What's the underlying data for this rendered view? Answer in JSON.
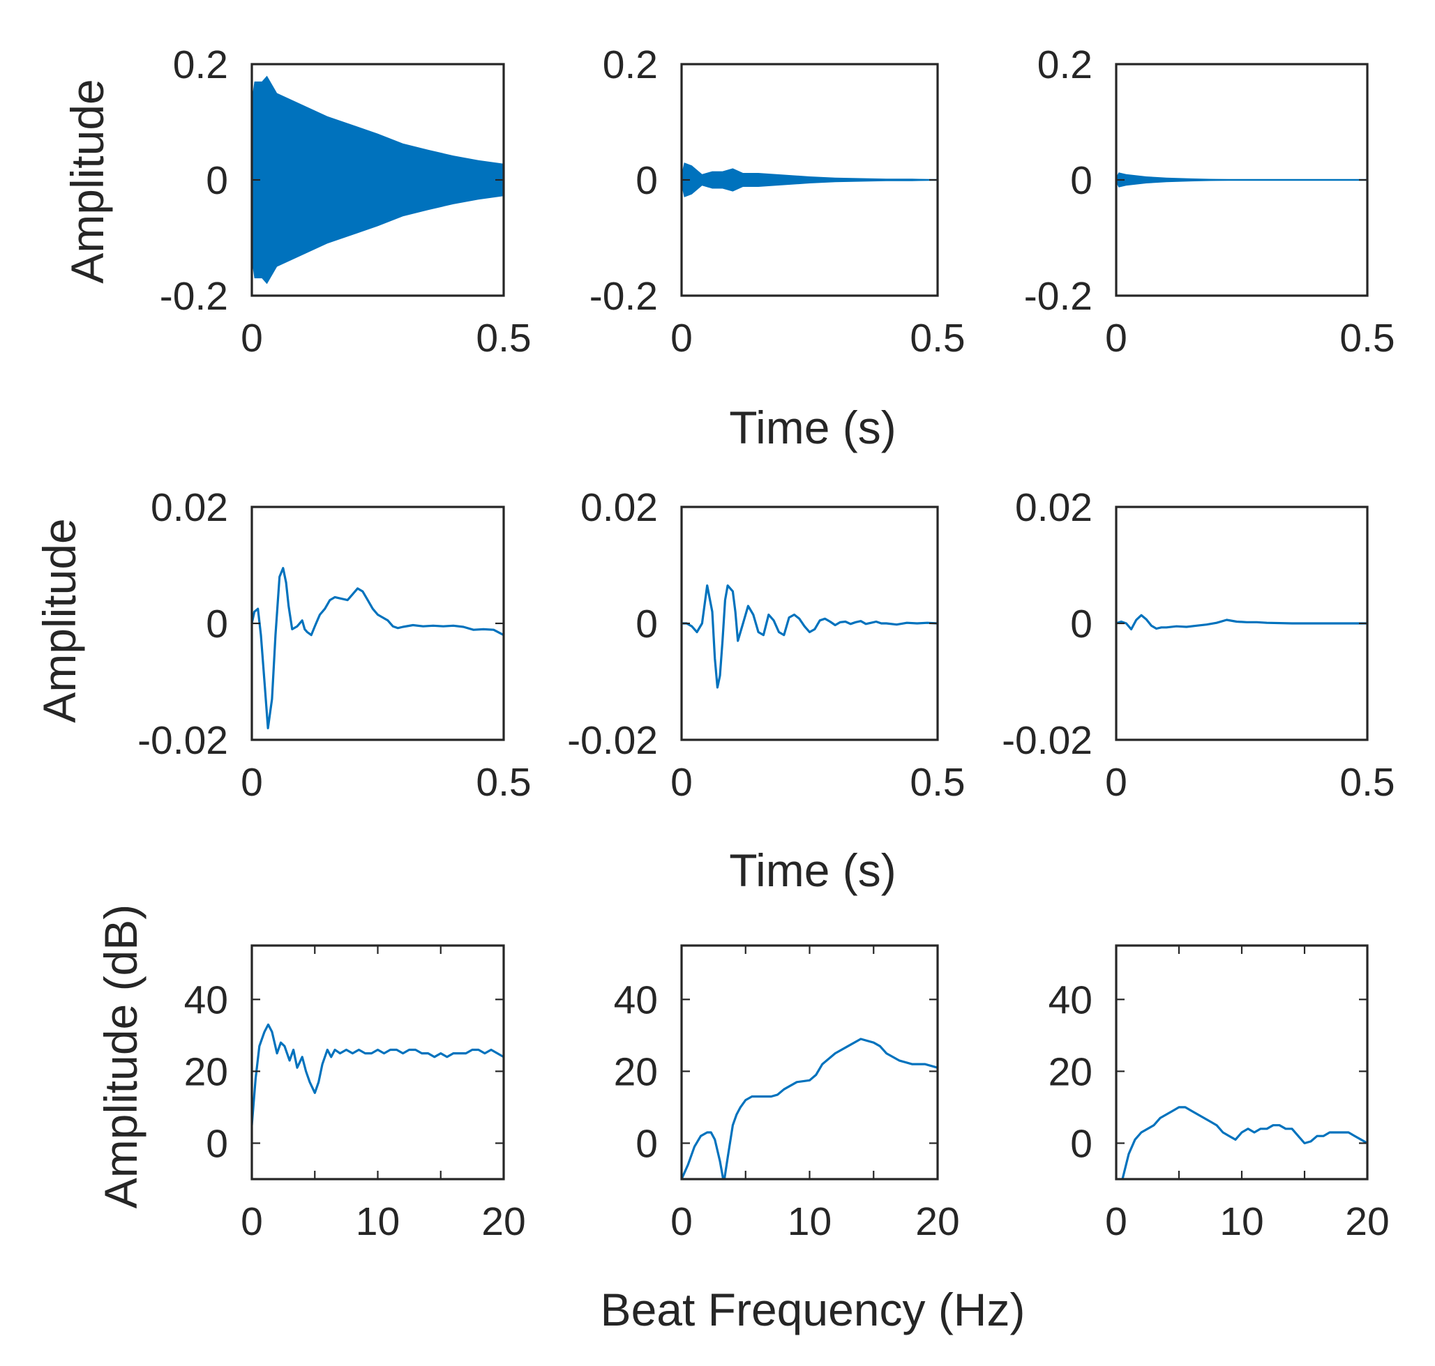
{
  "chart_data": {
    "type": "line",
    "layout": "3x3 grid of subplots",
    "color": "#0072BD",
    "rows": [
      {
        "row": 1,
        "ylabel": "Amplitude",
        "xlabel": "Time (s)",
        "xlim": [
          0,
          0.5
        ],
        "ylim": [
          -0.2,
          0.2
        ],
        "xticks": [
          0,
          0.5
        ],
        "xticklabels": [
          "0",
          "0.5"
        ],
        "yticks": [
          -0.2,
          0,
          0.2
        ],
        "yticklabels": [
          "-0.2",
          "0",
          "0.2"
        ],
        "panels": [
          {
            "kind": "envelope",
            "x": [
              0,
              0.005,
              0.02,
              0.03,
              0.05,
              0.1,
              0.15,
              0.2,
              0.25,
              0.3,
              0.35,
              0.4,
              0.45,
              0.5
            ],
            "upper": [
              0.14,
              0.17,
              0.17,
              0.18,
              0.15,
              0.13,
              0.11,
              0.095,
              0.08,
              0.063,
              0.052,
              0.042,
              0.034,
              0.028
            ],
            "lower": [
              -0.14,
              -0.17,
              -0.17,
              -0.18,
              -0.15,
              -0.13,
              -0.11,
              -0.095,
              -0.08,
              -0.063,
              -0.052,
              -0.042,
              -0.034,
              -0.028
            ]
          },
          {
            "kind": "envelope",
            "x": [
              0,
              0.005,
              0.02,
              0.04,
              0.06,
              0.08,
              0.1,
              0.12,
              0.15,
              0.2,
              0.25,
              0.3,
              0.35,
              0.4,
              0.45,
              0.5
            ],
            "upper": [
              0.01,
              0.03,
              0.025,
              0.01,
              0.015,
              0.015,
              0.02,
              0.012,
              0.012,
              0.009,
              0.006,
              0.004,
              0.003,
              0.002,
              0.002,
              0.001
            ],
            "lower": [
              -0.01,
              -0.03,
              -0.025,
              -0.01,
              -0.015,
              -0.015,
              -0.02,
              -0.012,
              -0.012,
              -0.009,
              -0.006,
              -0.004,
              -0.003,
              -0.002,
              -0.002,
              -0.001
            ]
          },
          {
            "kind": "envelope",
            "x": [
              0,
              0.005,
              0.02,
              0.04,
              0.06,
              0.08,
              0.1,
              0.15,
              0.2,
              0.25,
              0.3,
              0.4,
              0.5
            ],
            "upper": [
              0.005,
              0.013,
              0.01,
              0.008,
              0.006,
              0.005,
              0.004,
              0.0025,
              0.0015,
              0.001,
              0.0005,
              0.0003,
              0.0002
            ],
            "lower": [
              -0.005,
              -0.013,
              -0.01,
              -0.008,
              -0.006,
              -0.005,
              -0.004,
              -0.0025,
              -0.0015,
              -0.001,
              -0.0005,
              -0.0003,
              -0.0002
            ]
          }
        ]
      },
      {
        "row": 2,
        "ylabel": "Amplitude",
        "xlabel": "Time (s)",
        "xlim": [
          0,
          0.5
        ],
        "ylim": [
          -0.02,
          0.02
        ],
        "xticks": [
          0,
          0.5
        ],
        "xticklabels": [
          "0",
          "0.5"
        ],
        "yticks": [
          -0.02,
          0,
          0.02
        ],
        "yticklabels": [
          "-0.02",
          "0",
          "0.02"
        ],
        "panels": [
          {
            "kind": "line",
            "x": [
              0,
              0.005,
              0.012,
              0.018,
              0.025,
              0.032,
              0.04,
              0.047,
              0.055,
              0.062,
              0.068,
              0.073,
              0.08,
              0.09,
              0.1,
              0.105,
              0.11,
              0.118,
              0.125,
              0.13,
              0.135,
              0.145,
              0.155,
              0.165,
              0.18,
              0.19,
              0.2,
              0.21,
              0.22,
              0.23,
              0.24,
              0.25,
              0.26,
              0.27,
              0.28,
              0.29,
              0.3,
              0.32,
              0.34,
              0.36,
              0.38,
              0.4,
              0.42,
              0.44,
              0.46,
              0.48,
              0.5
            ],
            "y": [
              0,
              0.002,
              0.0025,
              -0.002,
              -0.01,
              -0.018,
              -0.013,
              -0.002,
              0.008,
              0.0095,
              0.007,
              0.003,
              -0.001,
              -0.0005,
              0.0005,
              -0.001,
              -0.0015,
              -0.002,
              -0.0005,
              0.0005,
              0.0015,
              0.0025,
              0.004,
              0.0045,
              0.0042,
              0.004,
              0.005,
              0.006,
              0.0055,
              0.004,
              0.0025,
              0.0015,
              0.001,
              0.0005,
              -0.0005,
              -0.0008,
              -0.0006,
              -0.0003,
              -0.0005,
              -0.0004,
              -0.0005,
              -0.0004,
              -0.0006,
              -0.0011,
              -0.001,
              -0.0011,
              -0.002
            ]
          },
          {
            "kind": "line",
            "x": [
              0,
              0.01,
              0.02,
              0.03,
              0.04,
              0.05,
              0.06,
              0.065,
              0.07,
              0.075,
              0.08,
              0.085,
              0.09,
              0.1,
              0.105,
              0.11,
              0.12,
              0.13,
              0.14,
              0.15,
              0.16,
              0.17,
              0.18,
              0.19,
              0.2,
              0.21,
              0.22,
              0.23,
              0.24,
              0.25,
              0.26,
              0.27,
              0.28,
              0.29,
              0.3,
              0.31,
              0.32,
              0.33,
              0.34,
              0.35,
              0.36,
              0.37,
              0.38,
              0.39,
              0.4,
              0.42,
              0.44,
              0.46,
              0.48,
              0.5
            ],
            "y": [
              0,
              0,
              -0.0005,
              -0.0015,
              0,
              0.0065,
              0.002,
              -0.006,
              -0.011,
              -0.009,
              -0.003,
              0.004,
              0.0065,
              0.0055,
              0.002,
              -0.003,
              0,
              0.003,
              0.0015,
              -0.0015,
              -0.002,
              0.0015,
              0.0005,
              -0.0015,
              -0.002,
              0.001,
              0.0015,
              0.0008,
              -0.0005,
              -0.0015,
              -0.001,
              0.0005,
              0.0008,
              0.0003,
              -0.0003,
              0.0002,
              0.0003,
              -0.0001,
              0.0002,
              0.0004,
              -0.0001,
              0.0001,
              0.0003,
              0,
              0,
              -0.0002,
              0.0001,
              0,
              0.0001,
              0
            ]
          },
          {
            "kind": "line",
            "x": [
              0,
              0.01,
              0.02,
              0.03,
              0.04,
              0.05,
              0.06,
              0.07,
              0.08,
              0.09,
              0.1,
              0.12,
              0.14,
              0.16,
              0.18,
              0.2,
              0.22,
              0.24,
              0.26,
              0.28,
              0.3,
              0.35,
              0.4,
              0.45,
              0.5
            ],
            "y": [
              0,
              0.0003,
              0,
              -0.001,
              0.0006,
              0.0014,
              0.0007,
              -0.0004,
              -0.0009,
              -0.0007,
              -0.0007,
              -0.0005,
              -0.0006,
              -0.0004,
              -0.0002,
              0.0001,
              0.0006,
              0.0003,
              0.0002,
              0.0002,
              0.0001,
              0,
              0,
              0,
              0
            ]
          }
        ]
      },
      {
        "row": 3,
        "ylabel": "Amplitude (dB)",
        "xlabel": "Beat Frequency (Hz)",
        "xlim": [
          0,
          20
        ],
        "ylim": [
          -10,
          55
        ],
        "xticks": [
          0,
          10,
          20
        ],
        "xticklabels": [
          "0",
          "10",
          "20"
        ],
        "yticks": [
          0,
          20,
          40
        ],
        "yticklabels": [
          "0",
          "20",
          "40"
        ],
        "minor_xticks": [
          5,
          15
        ],
        "panels": [
          {
            "kind": "line",
            "x": [
              0,
              0.3,
              0.6,
              1,
              1.3,
              1.6,
              2,
              2.3,
              2.6,
              3,
              3.3,
              3.6,
              4,
              4.3,
              4.6,
              5,
              5.3,
              5.6,
              6,
              6.3,
              6.6,
              7,
              7.5,
              8,
              8.5,
              9,
              9.5,
              10,
              10.5,
              11,
              11.5,
              12,
              12.5,
              13,
              13.5,
              14,
              14.5,
              15,
              15.5,
              16,
              16.5,
              17,
              17.5,
              18,
              18.5,
              19,
              19.5,
              20
            ],
            "y": [
              5,
              18,
              27,
              31,
              33,
              31,
              25,
              28,
              27,
              23,
              26,
              21,
              24,
              20,
              17,
              14,
              17,
              22,
              26,
              24,
              26,
              25,
              26,
              25,
              26,
              25,
              25,
              26,
              25,
              26,
              26,
              25,
              26,
              26,
              25,
              25,
              24,
              25,
              24,
              25,
              25,
              25,
              26,
              26,
              25,
              26,
              25,
              24
            ]
          },
          {
            "kind": "line",
            "x": [
              0,
              0.5,
              1,
              1.5,
              2,
              2.3,
              2.6,
              3,
              3.3,
              3.6,
              4,
              4.3,
              4.6,
              5,
              5.5,
              6,
              7,
              7.5,
              8,
              9,
              10,
              10.5,
              11,
              12,
              13,
              14,
              15,
              15.5,
              16,
              17,
              18,
              19,
              20
            ],
            "y": [
              -10,
              -6,
              -1,
              2,
              3,
              3,
              1,
              -5,
              -11,
              -4,
              5,
              8,
              10,
              12,
              13,
              13,
              13,
              13.5,
              15,
              17,
              17.5,
              19,
              22,
              25,
              27,
              29,
              28,
              27,
              25,
              23,
              22,
              22,
              21
            ]
          },
          {
            "kind": "line",
            "x": [
              0.5,
              1,
              1.5,
              2,
              3,
              3.5,
              4,
              4.5,
              5,
              5.5,
              6,
              7,
              7.5,
              8,
              8.5,
              9,
              9.5,
              10,
              10.5,
              11,
              11.5,
              12,
              12.5,
              13,
              13.5,
              14,
              14.5,
              15,
              15.5,
              16,
              16.5,
              17,
              17.5,
              18,
              18.5,
              19,
              19.5,
              20
            ],
            "y": [
              -10,
              -3,
              1,
              3,
              5,
              7,
              8,
              9,
              10,
              10,
              9,
              7,
              6,
              5,
              3,
              2,
              1,
              3,
              4,
              3,
              4,
              4,
              5,
              5,
              4,
              4,
              2,
              0,
              0.5,
              2,
              2,
              3,
              3,
              3,
              3,
              2,
              1,
              0
            ]
          }
        ]
      }
    ]
  }
}
